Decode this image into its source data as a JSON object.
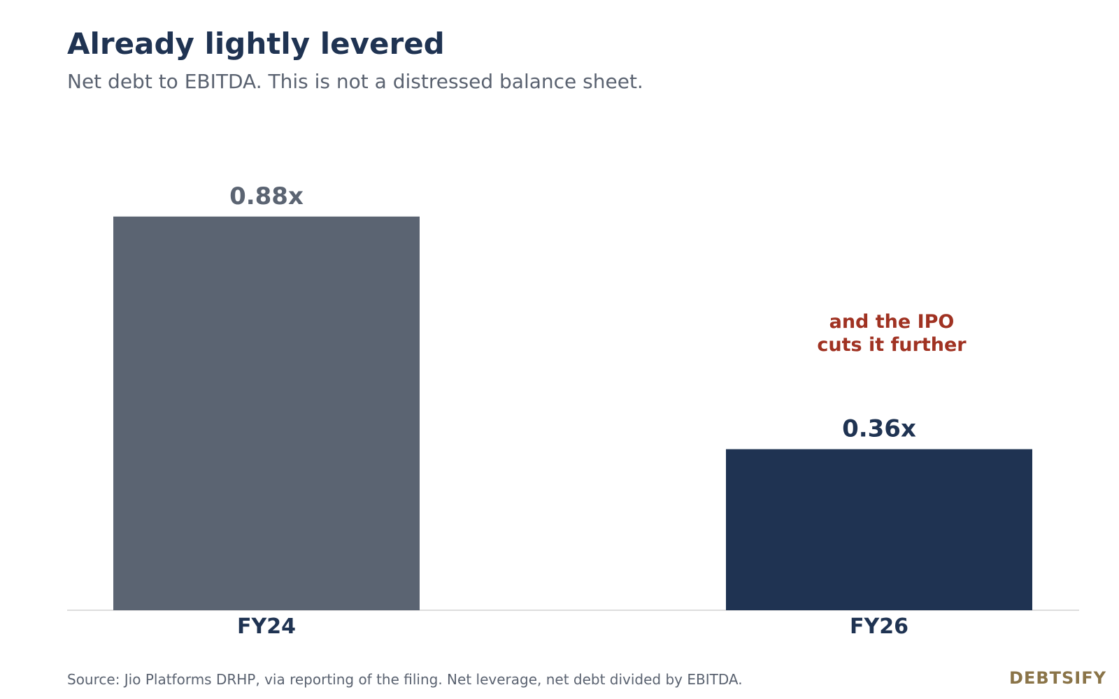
{
  "header": {
    "title": "Already lightly levered",
    "subtitle": "Net debt to EBITDA. This is not a distressed balance sheet."
  },
  "chart_data": {
    "type": "bar",
    "categories": [
      "FY24",
      "FY26"
    ],
    "values": [
      0.88,
      0.36
    ],
    "value_labels": [
      "0.88x",
      "0.36x"
    ],
    "bar_colors": [
      "#5b6472",
      "#1f3352"
    ],
    "value_label_colors": [
      "#5b6472",
      "#1f3352"
    ],
    "ylim": [
      0,
      1.0
    ],
    "grid": false,
    "annotation": {
      "lines": [
        "and the IPO",
        "cuts it further"
      ],
      "near_category": "FY26",
      "color": "#a03222"
    }
  },
  "footer": {
    "source": "Source: Jio Platforms DRHP, via reporting of the filing. Net leverage, net debt divided by EBITDA.",
    "brand": "DEBTSIFY"
  }
}
